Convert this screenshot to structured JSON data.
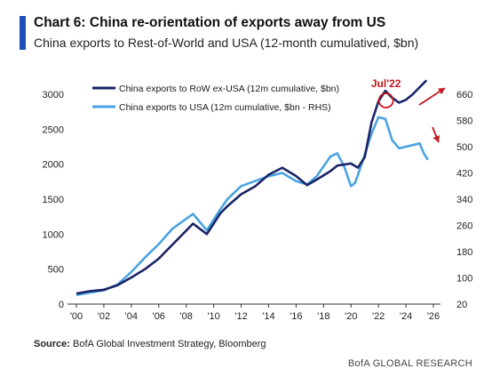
{
  "header": {
    "title": "Chart 6: China re-orientation of exports away from US",
    "subtitle": "China exports to Rest-of-World and USA (12-month cumulatived, $bn)"
  },
  "footer": {
    "source_label": "Source:",
    "source_text": "BofA Global Investment Strategy, Bloomberg",
    "brand": "BofA GLOBAL RESEARCH"
  },
  "colors": {
    "row_series": "#1a2466",
    "usa_series": "#4aa3e0",
    "accent": "#1f4db8",
    "annotation": "#c4161c"
  },
  "chart_data": {
    "type": "line",
    "x_axis": {
      "min": 2000,
      "max": 2026,
      "ticks": [
        2000,
        2002,
        2004,
        2006,
        2008,
        2010,
        2012,
        2014,
        2016,
        2018,
        2020,
        2022,
        2024,
        2026
      ],
      "tick_labels": [
        "'00",
        "'02",
        "'04",
        "'06",
        "'08",
        "'10",
        "'12",
        "'14",
        "'16",
        "'18",
        "'20",
        "'22",
        "'24",
        "'26"
      ]
    },
    "y_left": {
      "min": 0,
      "max": 3000,
      "ticks": [
        0,
        500,
        1000,
        1500,
        2000,
        2500,
        3000
      ],
      "tick_labels": [
        "0",
        "500",
        "1000",
        "1500",
        "2000",
        "2500",
        "3000"
      ]
    },
    "y_right": {
      "min": 20,
      "max": 660,
      "ticks": [
        20,
        100,
        180,
        260,
        340,
        420,
        500,
        580,
        660
      ],
      "tick_labels": [
        "20",
        "100",
        "180",
        "260",
        "340",
        "420",
        "500",
        "580",
        "660"
      ]
    },
    "legend_position": "top-left",
    "grid": false,
    "series": [
      {
        "name": "China exports to RoW ex-USA (12m cumulative, $bn)",
        "axis": "left",
        "x": [
          2000,
          2001,
          2002,
          2003,
          2004,
          2005,
          2006,
          2007,
          2008.5,
          2009.5,
          2010.5,
          2011,
          2012,
          2013,
          2014,
          2015,
          2016,
          2016.8,
          2017.5,
          2018.5,
          2019,
          2020,
          2020.5,
          2021,
          2021.5,
          2022,
          2022.5,
          2023,
          2023.5,
          2024,
          2024.5,
          2025,
          2025.5
        ],
        "values": [
          150,
          185,
          205,
          270,
          380,
          500,
          650,
          850,
          1150,
          1000,
          1300,
          1400,
          1570,
          1680,
          1850,
          1950,
          1830,
          1700,
          1780,
          1900,
          1980,
          2010,
          1950,
          2100,
          2600,
          2900,
          3050,
          2950,
          2880,
          2920,
          3000,
          3100,
          3200
        ]
      },
      {
        "name": "China exports to USA (12m cumulative, $bn - RHS)",
        "axis": "right",
        "x": [
          2000,
          2001,
          2002,
          2003,
          2004,
          2005,
          2006,
          2007,
          2008.5,
          2009.5,
          2010.5,
          2011,
          2012,
          2013,
          2014,
          2015,
          2016,
          2016.8,
          2017.5,
          2018.5,
          2019,
          2019.5,
          2020,
          2020.3,
          2020.8,
          2021.5,
          2022,
          2022.5,
          2023,
          2023.5,
          2024,
          2024.5,
          2025,
          2025.3,
          2025.6
        ],
        "values": [
          48,
          55,
          62,
          80,
          118,
          162,
          203,
          250,
          295,
          245,
          310,
          340,
          380,
          395,
          410,
          420,
          395,
          385,
          410,
          470,
          480,
          440,
          380,
          390,
          450,
          540,
          590,
          585,
          520,
          495,
          500,
          505,
          510,
          480,
          460
        ]
      }
    ],
    "annotations": {
      "circle_label": "Jul'22"
    }
  }
}
